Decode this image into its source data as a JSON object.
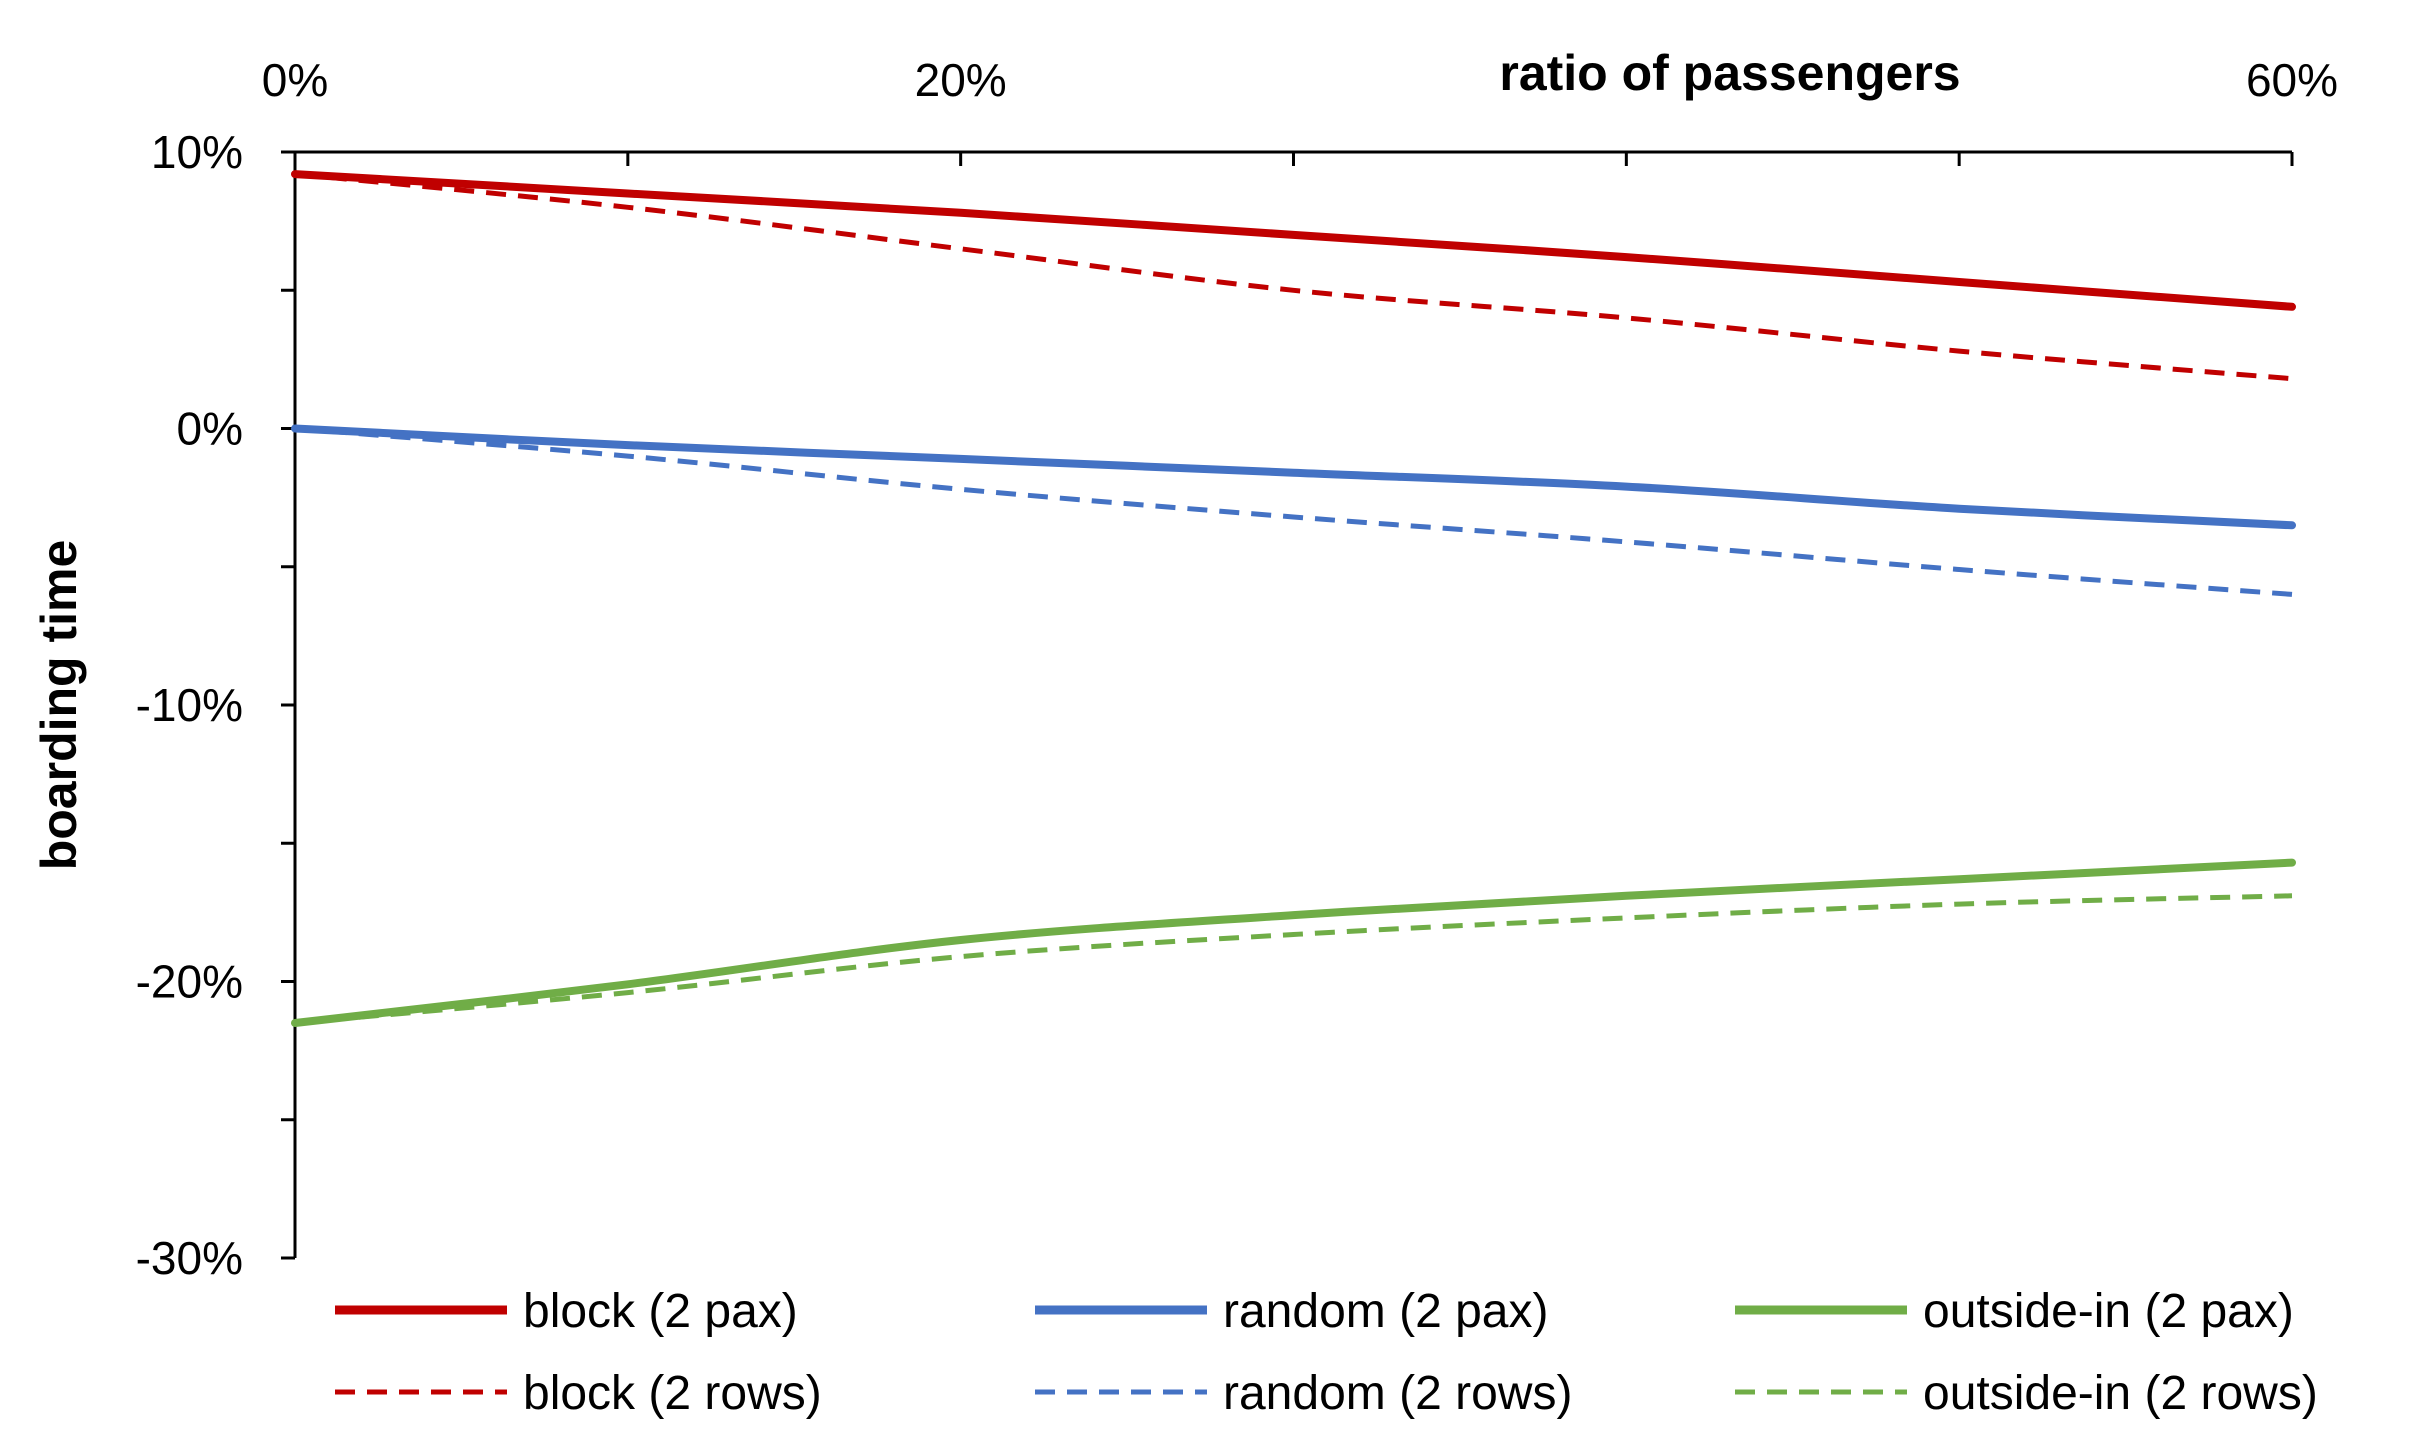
{
  "chart_data": {
    "type": "line",
    "title": "",
    "xlabel": "ratio of passengers",
    "ylabel": "boarding time",
    "x": [
      0,
      10,
      20,
      30,
      40,
      50,
      60
    ],
    "xlim": [
      0,
      60
    ],
    "ylim": [
      -30,
      10
    ],
    "x_ticks": [
      0,
      10,
      20,
      30,
      40,
      50,
      60
    ],
    "x_tick_labels": [
      {
        "value": 0,
        "label": "0%"
      },
      {
        "value": 20,
        "label": "20%"
      },
      {
        "value": 60,
        "label": "60%"
      }
    ],
    "y_ticks": [
      10,
      5,
      0,
      -5,
      -10,
      -15,
      -20,
      -25,
      -30
    ],
    "y_tick_labels": [
      {
        "value": 10,
        "label": "10%"
      },
      {
        "value": 0,
        "label": "0%"
      },
      {
        "value": -10,
        "label": "-10%"
      },
      {
        "value": -20,
        "label": "-20%"
      },
      {
        "value": -30,
        "label": "-30%"
      }
    ],
    "grid": false,
    "x_axis_position": "top",
    "legend_position": "bottom",
    "series": [
      {
        "name": "block (2 pax)",
        "color": "#C00000",
        "style": "solid",
        "values": [
          9.2,
          8.5,
          7.8,
          7.0,
          6.2,
          5.3,
          4.4
        ]
      },
      {
        "name": "random (2 pax)",
        "color": "#4472C4",
        "style": "solid",
        "values": [
          0.0,
          -0.6,
          -1.1,
          -1.6,
          -2.1,
          -2.9,
          -3.5
        ]
      },
      {
        "name": "outside-in (2 pax)",
        "color": "#70AD47",
        "style": "solid",
        "values": [
          -21.5,
          -20.1,
          -18.5,
          -17.6,
          -16.9,
          -16.3,
          -15.7
        ]
      },
      {
        "name": "block  (2 rows)",
        "color": "#C00000",
        "style": "dashed",
        "values": [
          9.2,
          8.0,
          6.5,
          5.0,
          4.0,
          2.8,
          1.8
        ]
      },
      {
        "name": "random (2 rows)",
        "color": "#4472C4",
        "style": "dashed",
        "values": [
          0.0,
          -1.0,
          -2.2,
          -3.2,
          -4.1,
          -5.1,
          -6.0
        ]
      },
      {
        "name": "outside-in (2 rows)",
        "color": "#70AD47",
        "style": "dashed",
        "values": [
          -21.5,
          -20.4,
          -19.1,
          -18.3,
          -17.7,
          -17.2,
          -16.9
        ]
      }
    ]
  }
}
